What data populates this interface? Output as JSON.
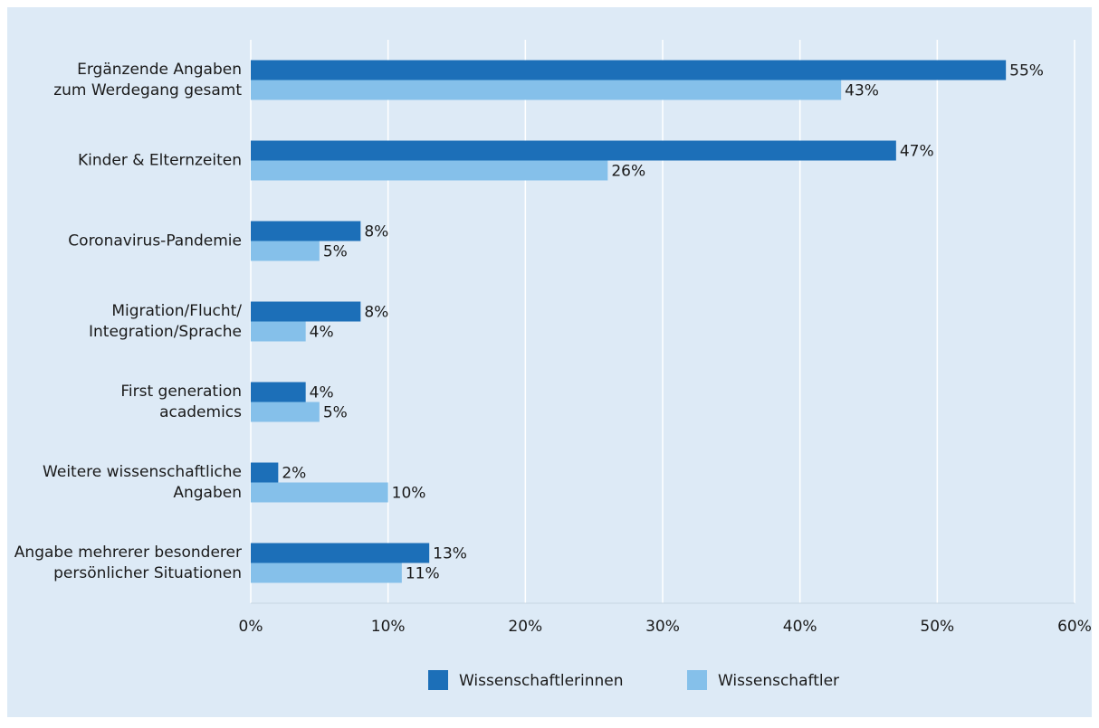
{
  "chart_data": {
    "type": "hbar",
    "categories": [
      "Ergänzende Angaben\nzum Werdegang gesamt",
      "Kinder & Elternzeiten",
      "Coronavirus-Pandemie",
      "Migration/Flucht/\nIntegration/Sprache",
      "First generation\nacademics",
      "Weitere wissenschaftliche\nAngaben",
      "Angabe mehrerer besonderer\npersönlicher Situationen"
    ],
    "series": [
      {
        "name": "Wissenschaftlerinnen",
        "color": "#1c6fb8",
        "values": [
          55,
          47,
          8,
          8,
          4,
          2,
          13
        ],
        "value_labels": [
          "55%",
          "47%",
          "8%",
          "8%",
          "4%",
          "2%",
          "13%"
        ]
      },
      {
        "name": "Wissenschaftler",
        "color": "#85c0ea",
        "values": [
          43,
          26,
          5,
          4,
          5,
          10,
          11
        ],
        "value_labels": [
          "43%",
          "26%",
          "5%",
          "4%",
          "5%",
          "10%",
          "11%"
        ]
      }
    ],
    "xlim": [
      0,
      60
    ],
    "xticks": [
      {
        "value": 0,
        "label": "0%"
      },
      {
        "value": 10,
        "label": "10%"
      },
      {
        "value": 20,
        "label": "20%"
      },
      {
        "value": 30,
        "label": "30%"
      },
      {
        "value": 40,
        "label": "40%"
      },
      {
        "value": 50,
        "label": "50%"
      },
      {
        "value": 60,
        "label": "60%"
      }
    ],
    "grid": true,
    "legend": "bottom"
  }
}
